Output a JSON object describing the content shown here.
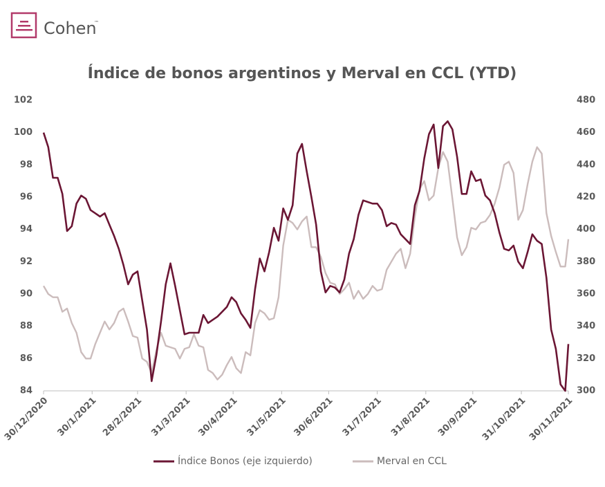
{
  "logo": {
    "text": "Cohen",
    "mark": "™"
  },
  "chart_data": {
    "type": "line",
    "title": "Índice de bonos argentinos y Merval en CCL (YTD)",
    "x": [
      "30/12/2020",
      "2/1/2021",
      "5/1/2021",
      "8/1/2021",
      "11/1/2021",
      "14/1/2021",
      "17/1/2021",
      "20/1/2021",
      "23/1/2021",
      "26/1/2021",
      "29/1/2021",
      "1/2/2021",
      "4/2/2021",
      "7/2/2021",
      "10/2/2021",
      "13/2/2021",
      "16/2/2021",
      "19/2/2021",
      "22/2/2021",
      "25/2/2021",
      "28/2/2021",
      "3/3/2021",
      "6/3/2021",
      "9/3/2021",
      "12/3/2021",
      "15/3/2021",
      "18/3/2021",
      "21/3/2021",
      "24/3/2021",
      "27/3/2021",
      "30/3/2021",
      "2/4/2021",
      "5/4/2021",
      "8/4/2021",
      "11/4/2021",
      "14/4/2021",
      "17/4/2021",
      "20/4/2021",
      "23/4/2021",
      "26/4/2021",
      "29/4/2021",
      "2/5/2021",
      "5/5/2021",
      "8/5/2021",
      "11/5/2021",
      "14/5/2021",
      "17/5/2021",
      "20/5/2021",
      "23/5/2021",
      "26/5/2021",
      "29/5/2021",
      "1/6/2021",
      "4/6/2021",
      "7/6/2021",
      "10/6/2021",
      "13/6/2021",
      "16/6/2021",
      "19/6/2021",
      "22/6/2021",
      "25/6/2021",
      "28/6/2021",
      "1/7/2021",
      "4/7/2021",
      "7/7/2021",
      "10/7/2021",
      "13/7/2021",
      "16/7/2021",
      "19/7/2021",
      "22/7/2021",
      "25/7/2021",
      "28/7/2021",
      "31/7/2021",
      "3/8/2021",
      "6/8/2021",
      "9/8/2021",
      "12/8/2021",
      "15/8/2021",
      "18/8/2021",
      "21/8/2021",
      "24/8/2021",
      "27/8/2021",
      "30/8/2021",
      "2/9/2021",
      "5/9/2021",
      "8/9/2021",
      "11/9/2021",
      "14/9/2021",
      "17/9/2021",
      "20/9/2021",
      "23/9/2021",
      "26/9/2021",
      "29/9/2021",
      "2/10/2021",
      "5/10/2021",
      "8/10/2021",
      "11/10/2021",
      "14/10/2021",
      "17/10/2021",
      "20/10/2021",
      "23/10/2021",
      "26/10/2021",
      "29/10/2021",
      "1/11/2021",
      "4/11/2021",
      "7/11/2021",
      "10/11/2021",
      "13/11/2021",
      "16/11/2021",
      "19/11/2021",
      "22/11/2021",
      "25/11/2021",
      "28/11/2021",
      "30/11/2021"
    ],
    "series": [
      {
        "name": "Índice Bonos (eje izquierdo)",
        "color": "#6b1634",
        "axis": "y",
        "values": [
          100.0,
          99.1,
          97.2,
          97.2,
          96.2,
          93.9,
          94.2,
          95.6,
          96.1,
          95.9,
          95.2,
          95.0,
          94.8,
          95.0,
          94.3,
          93.6,
          92.8,
          91.8,
          90.6,
          91.2,
          91.4,
          89.6,
          87.8,
          84.6,
          86.2,
          88.3,
          90.6,
          91.9,
          90.5,
          89.0,
          87.5,
          87.6,
          87.6,
          87.6,
          88.7,
          88.2,
          88.4,
          88.6,
          88.9,
          89.2,
          89.8,
          89.5,
          88.8,
          88.4,
          87.9,
          90.3,
          92.2,
          91.4,
          92.6,
          94.1,
          93.3,
          95.3,
          94.6,
          95.5,
          98.7,
          99.3,
          97.6,
          96.0,
          94.3,
          91.4,
          90.1,
          90.5,
          90.4,
          90.1,
          90.9,
          92.5,
          93.4,
          94.9,
          95.8,
          95.7,
          95.6,
          95.6,
          95.2,
          94.2,
          94.4,
          94.3,
          93.7,
          93.4,
          93.1,
          95.5,
          96.4,
          98.4,
          99.9,
          100.5,
          97.8,
          100.4,
          100.7,
          100.2,
          98.5,
          96.2,
          96.2,
          97.6,
          97.0,
          97.1,
          96.1,
          95.8,
          95.0,
          93.8,
          92.8,
          92.7,
          93.0,
          92.0,
          91.6,
          92.6,
          93.7,
          93.3,
          93.1,
          91.0,
          87.8,
          86.6,
          84.4,
          84.0,
          86.9
        ]
      },
      {
        "name": "Merval en CCL",
        "color": "#cbbcbc",
        "axis": "y2",
        "values": [
          365,
          360,
          358,
          358,
          349,
          351,
          342,
          336,
          324,
          320,
          320,
          329,
          336,
          343,
          338,
          342,
          349,
          351,
          343,
          334,
          333,
          320,
          318,
          311,
          325,
          336,
          328,
          327,
          326,
          320,
          326,
          327,
          335,
          328,
          327,
          313,
          311,
          307,
          310,
          316,
          321,
          314,
          311,
          324,
          322,
          342,
          350,
          348,
          344,
          345,
          358,
          390,
          406,
          404,
          400,
          405,
          408,
          389,
          389,
          383,
          373,
          367,
          366,
          360,
          363,
          367,
          357,
          362,
          357,
          360,
          365,
          362,
          363,
          375,
          380,
          385,
          388,
          376,
          385,
          408,
          425,
          430,
          418,
          421,
          438,
          448,
          442,
          419,
          395,
          384,
          389,
          401,
          400,
          404,
          405,
          409,
          416,
          426,
          440,
          442,
          435,
          406,
          412,
          428,
          442,
          451,
          447,
          410,
          396,
          386,
          377,
          377,
          394
        ]
      }
    ],
    "xlim": [
      "30/12/2020",
      "30/11/2021"
    ],
    "xticks": [
      "30/12/2020",
      "30/1/2021",
      "28/2/2021",
      "31/3/2021",
      "30/4/2021",
      "31/5/2021",
      "30/6/2021",
      "31/7/2021",
      "31/8/2021",
      "30/9/2021",
      "31/10/2021",
      "30/11/2021"
    ],
    "ylim": [
      84,
      102
    ],
    "yticks": [
      84,
      86,
      88,
      90,
      92,
      94,
      96,
      98,
      100,
      102
    ],
    "y2lim": [
      300,
      480
    ],
    "y2ticks": [
      300,
      320,
      340,
      360,
      380,
      400,
      420,
      440,
      460,
      480
    ],
    "grid": false,
    "legend": "bottom"
  }
}
